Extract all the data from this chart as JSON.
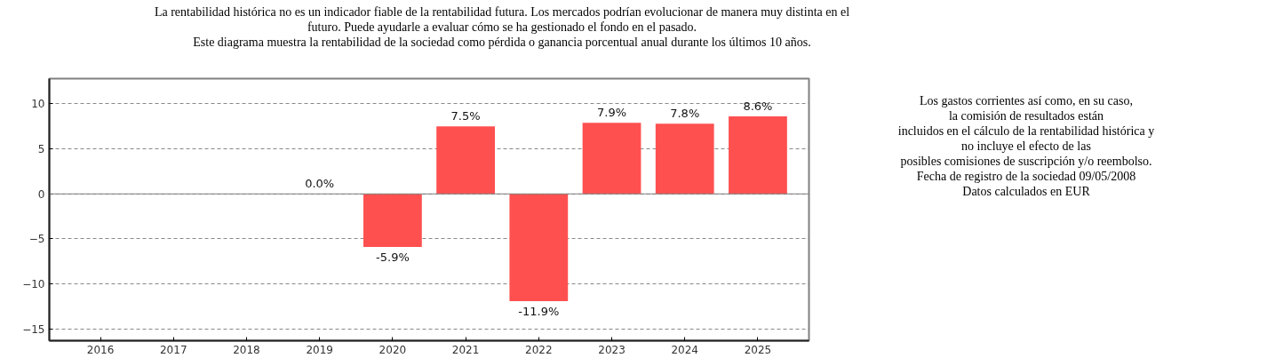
{
  "chart_data": {
    "type": "bar",
    "title": "La rentabilidad histórica no es un indicador fiable de la rentabilidad futura. Los mercados podrían evolucionar de manera muy distinta en el\nfuturo. Puede ayudarle a evaluar cómo se ha gestionado el fondo en el pasado.\nEste diagrama muestra la rentabilidad de la sociedad como pérdida o ganancia porcentual anual durante los últimos 10 años.",
    "annotations": [
      "Los gastos corrientes así como, en su caso,\nla comisión de resultados están\nincluidos en el cálculo de la rentabilidad histórica y\nno incluye el efecto de las\nposibles comisiones de suscripción y/o reembolso.\nFecha de registro de la sociedad 09/05/2008\nDatos calculados en EUR"
    ],
    "categories": [
      "2016",
      "2017",
      "2018",
      "2019",
      "2020",
      "2021",
      "2022",
      "2023",
      "2024",
      "2025"
    ],
    "values": [
      null,
      null,
      null,
      0.0,
      -5.9,
      7.5,
      -11.9,
      7.9,
      7.8,
      8.6
    ],
    "value_labels": [
      null,
      null,
      null,
      "0.0%",
      "-5.9%",
      "7.5%",
      "-11.9%",
      "7.9%",
      "7.8%",
      "8.6%"
    ],
    "color": "#ff5050",
    "ylim": [
      -16.3,
      12.8
    ],
    "yticks": [
      -15,
      -10,
      -5,
      0,
      5,
      10
    ],
    "grid": "y",
    "ref_lines": [
      {
        "axis": "y",
        "value": 0,
        "color": "#808080",
        "line_style": "solid"
      }
    ]
  }
}
